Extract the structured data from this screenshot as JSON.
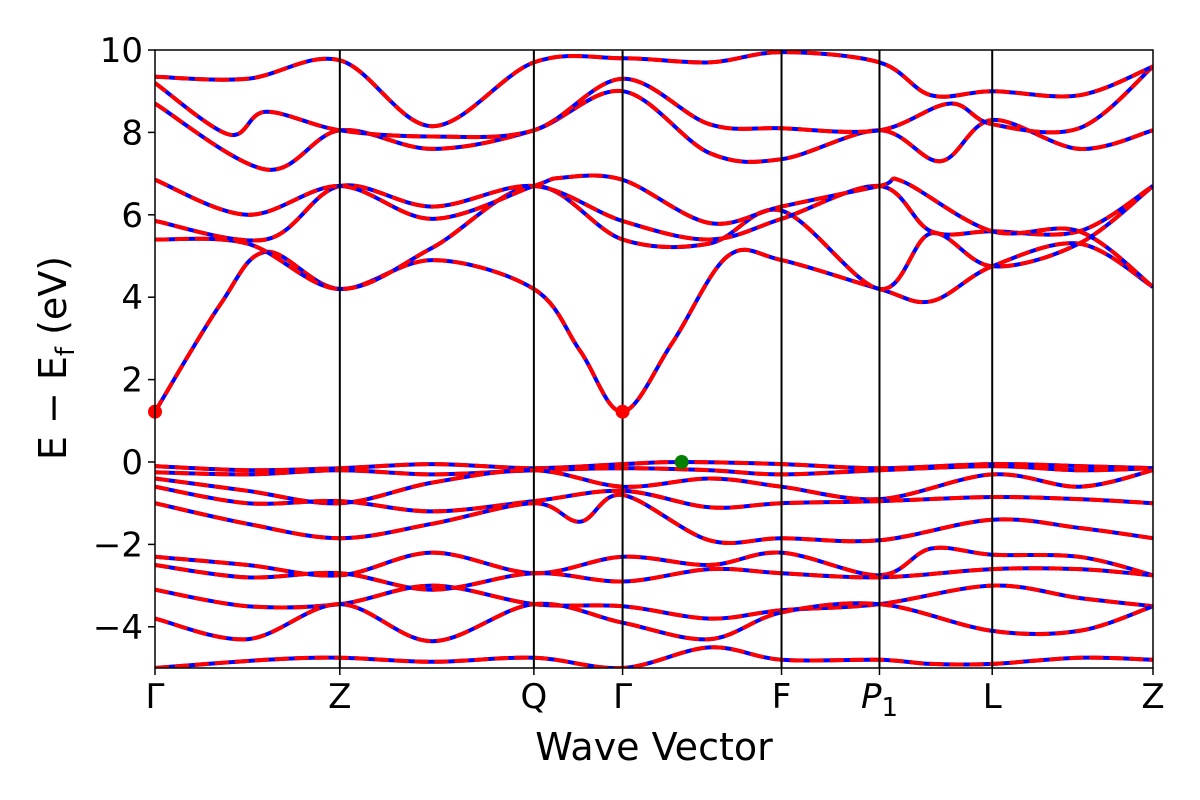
{
  "chart_data": {
    "type": "line",
    "xlabel": "Wave Vector",
    "ylabel": "E  −  E",
    "ylabel_sub": "f",
    "ylabel_unit": " (eV)",
    "ylim": [
      -5,
      10
    ],
    "yticks": [
      -4,
      -2,
      0,
      2,
      4,
      6,
      8,
      10
    ],
    "ytick_labels": [
      "−4",
      "−2",
      "0",
      "2",
      "4",
      "6",
      "8",
      "10"
    ],
    "kpath": [
      {
        "label": "Γ",
        "x": 0.0
      },
      {
        "label": "Z",
        "x": 1.0
      },
      {
        "label": "Q",
        "x": 2.05
      },
      {
        "label": "Γ",
        "x": 2.53
      },
      {
        "label": "F",
        "x": 3.39
      },
      {
        "label": "P",
        "sub": "1",
        "x": 3.92
      },
      {
        "label": "L",
        "x": 4.53
      },
      {
        "label": "Z",
        "x": 5.4
      }
    ],
    "series_colors": {
      "blue": "#0000ff",
      "red": "#ff0000",
      "vbm": "#008000",
      "cbm": "#ff0000"
    },
    "markers": [
      {
        "type": "cbm",
        "x": 0.0,
        "y": 1.22
      },
      {
        "type": "cbm",
        "x": 2.53,
        "y": 1.22
      },
      {
        "type": "vbm",
        "x": 2.85,
        "y": 0.0
      }
    ],
    "bands": [
      [
        [
          0,
          1.22
        ],
        [
          0.35,
          3.8
        ],
        [
          0.6,
          5.1
        ],
        [
          1.0,
          4.2
        ],
        [
          1.5,
          4.9
        ],
        [
          2.05,
          4.2
        ],
        [
          2.3,
          2.7
        ],
        [
          2.53,
          1.22
        ],
        [
          2.8,
          2.9
        ],
        [
          3.1,
          5.0
        ],
        [
          3.39,
          4.9
        ],
        [
          3.92,
          4.2
        ],
        [
          4.2,
          3.9
        ],
        [
          4.53,
          4.75
        ],
        [
          5.0,
          5.3
        ],
        [
          5.4,
          4.25
        ]
      ],
      [
        [
          0,
          5.4
        ],
        [
          0.5,
          5.3
        ],
        [
          1.0,
          4.2
        ],
        [
          1.5,
          5.2
        ],
        [
          2.05,
          6.7
        ],
        [
          2.53,
          5.4
        ],
        [
          3.0,
          5.3
        ],
        [
          3.39,
          6.1
        ],
        [
          3.92,
          4.2
        ],
        [
          4.2,
          5.55
        ],
        [
          4.53,
          4.75
        ],
        [
          5.0,
          5.3
        ],
        [
          5.4,
          6.7
        ]
      ],
      [
        [
          0,
          5.85
        ],
        [
          0.6,
          5.4
        ],
        [
          1.0,
          6.7
        ],
        [
          1.5,
          6.2
        ],
        [
          2.05,
          6.7
        ],
        [
          2.53,
          5.85
        ],
        [
          3.0,
          5.4
        ],
        [
          3.39,
          5.9
        ],
        [
          3.92,
          6.7
        ],
        [
          4.2,
          5.6
        ],
        [
          4.53,
          5.6
        ],
        [
          5.0,
          5.6
        ],
        [
          5.4,
          6.7
        ]
      ],
      [
        [
          0,
          6.85
        ],
        [
          0.5,
          6.0
        ],
        [
          1.0,
          6.7
        ],
        [
          1.5,
          5.9
        ],
        [
          2.05,
          6.7
        ],
        [
          2.2,
          6.9
        ],
        [
          2.53,
          6.85
        ],
        [
          3.0,
          5.8
        ],
        [
          3.39,
          6.2
        ],
        [
          3.92,
          6.7
        ],
        [
          4.05,
          6.8
        ],
        [
          4.53,
          5.6
        ],
        [
          5.0,
          5.6
        ],
        [
          5.4,
          4.25
        ]
      ],
      [
        [
          0,
          8.7
        ],
        [
          0.6,
          7.1
        ],
        [
          1.0,
          8.05
        ],
        [
          1.5,
          7.6
        ],
        [
          2.05,
          8.05
        ],
        [
          2.53,
          9.0
        ],
        [
          3.0,
          7.5
        ],
        [
          3.39,
          7.35
        ],
        [
          3.92,
          8.05
        ],
        [
          4.25,
          7.3
        ],
        [
          4.53,
          8.3
        ],
        [
          5.0,
          7.6
        ],
        [
          5.4,
          8.05
        ]
      ],
      [
        [
          0,
          9.2
        ],
        [
          0.4,
          7.95
        ],
        [
          0.6,
          8.5
        ],
        [
          1.0,
          8.05
        ],
        [
          1.5,
          7.9
        ],
        [
          2.05,
          8.05
        ],
        [
          2.53,
          9.3
        ],
        [
          3.0,
          8.2
        ],
        [
          3.39,
          8.1
        ],
        [
          3.92,
          8.05
        ],
        [
          4.3,
          8.7
        ],
        [
          4.53,
          8.2
        ],
        [
          5.0,
          8.1
        ],
        [
          5.4,
          9.6
        ]
      ],
      [
        [
          0,
          9.35
        ],
        [
          0.5,
          9.3
        ],
        [
          1.0,
          9.75
        ],
        [
          1.5,
          8.15
        ],
        [
          2.05,
          9.7
        ],
        [
          2.53,
          9.8
        ],
        [
          3.0,
          9.7
        ],
        [
          3.39,
          9.95
        ],
        [
          3.92,
          9.7
        ],
        [
          4.2,
          8.9
        ],
        [
          4.53,
          9.0
        ],
        [
          5.0,
          8.9
        ],
        [
          5.4,
          9.6
        ]
      ],
      [
        [
          0,
          -0.1
        ],
        [
          0.5,
          -0.2
        ],
        [
          1.0,
          -0.15
        ],
        [
          1.5,
          -0.05
        ],
        [
          2.05,
          -0.15
        ],
        [
          2.53,
          -0.05
        ],
        [
          2.85,
          0.0
        ],
        [
          3.39,
          -0.05
        ],
        [
          3.92,
          -0.15
        ],
        [
          4.53,
          -0.05
        ],
        [
          5.0,
          -0.1
        ],
        [
          5.4,
          -0.15
        ]
      ],
      [
        [
          0,
          -0.25
        ],
        [
          0.5,
          -0.3
        ],
        [
          1.0,
          -0.2
        ],
        [
          1.5,
          -0.3
        ],
        [
          2.05,
          -0.2
        ],
        [
          2.53,
          -0.15
        ],
        [
          3.0,
          -0.2
        ],
        [
          3.39,
          -0.3
        ],
        [
          3.92,
          -0.2
        ],
        [
          4.53,
          -0.1
        ],
        [
          5.0,
          -0.2
        ],
        [
          5.4,
          -0.15
        ]
      ],
      [
        [
          0,
          -0.4
        ],
        [
          0.5,
          -0.7
        ],
        [
          1.0,
          -1.0
        ],
        [
          1.5,
          -0.5
        ],
        [
          2.05,
          -0.2
        ],
        [
          2.53,
          -0.6
        ],
        [
          3.0,
          -0.4
        ],
        [
          3.39,
          -0.6
        ],
        [
          3.92,
          -0.9
        ],
        [
          4.53,
          -0.3
        ],
        [
          5.0,
          -0.6
        ],
        [
          5.4,
          -0.2
        ]
      ],
      [
        [
          0,
          -0.6
        ],
        [
          0.5,
          -1.0
        ],
        [
          1.0,
          -0.95
        ],
        [
          1.5,
          -1.2
        ],
        [
          2.05,
          -0.95
        ],
        [
          2.53,
          -0.7
        ],
        [
          3.0,
          -1.1
        ],
        [
          3.39,
          -1.0
        ],
        [
          3.92,
          -0.95
        ],
        [
          4.53,
          -0.85
        ],
        [
          5.0,
          -0.9
        ],
        [
          5.4,
          -1.0
        ]
      ],
      [
        [
          0,
          -1.0
        ],
        [
          0.5,
          -1.5
        ],
        [
          1.0,
          -1.85
        ],
        [
          1.5,
          -1.5
        ],
        [
          2.05,
          -1.0
        ],
        [
          2.3,
          -1.45
        ],
        [
          2.53,
          -0.8
        ],
        [
          3.0,
          -1.9
        ],
        [
          3.39,
          -1.85
        ],
        [
          3.92,
          -1.9
        ],
        [
          4.53,
          -1.4
        ],
        [
          5.0,
          -1.6
        ],
        [
          5.4,
          -1.85
        ]
      ],
      [
        [
          0,
          -2.3
        ],
        [
          0.5,
          -2.5
        ],
        [
          1.0,
          -2.75
        ],
        [
          1.5,
          -2.2
        ],
        [
          2.05,
          -2.7
        ],
        [
          2.53,
          -2.3
        ],
        [
          3.0,
          -2.5
        ],
        [
          3.39,
          -2.2
        ],
        [
          3.92,
          -2.75
        ],
        [
          4.2,
          -2.1
        ],
        [
          4.53,
          -2.25
        ],
        [
          5.0,
          -2.3
        ],
        [
          5.4,
          -2.75
        ]
      ],
      [
        [
          0,
          -2.5
        ],
        [
          0.5,
          -2.8
        ],
        [
          1.0,
          -2.7
        ],
        [
          1.5,
          -3.1
        ],
        [
          2.05,
          -2.7
        ],
        [
          2.53,
          -2.9
        ],
        [
          3.0,
          -2.6
        ],
        [
          3.39,
          -2.7
        ],
        [
          3.92,
          -2.8
        ],
        [
          4.53,
          -2.6
        ],
        [
          5.0,
          -2.6
        ],
        [
          5.4,
          -2.75
        ]
      ],
      [
        [
          0,
          -3.1
        ],
        [
          0.5,
          -3.5
        ],
        [
          1.0,
          -3.45
        ],
        [
          1.5,
          -3.0
        ],
        [
          2.05,
          -3.45
        ],
        [
          2.53,
          -3.5
        ],
        [
          3.0,
          -3.8
        ],
        [
          3.39,
          -3.6
        ],
        [
          3.92,
          -3.45
        ],
        [
          4.53,
          -3.0
        ],
        [
          5.0,
          -3.3
        ],
        [
          5.4,
          -3.5
        ]
      ],
      [
        [
          0,
          -3.8
        ],
        [
          0.5,
          -4.3
        ],
        [
          1.0,
          -3.45
        ],
        [
          1.5,
          -4.35
        ],
        [
          2.05,
          -3.45
        ],
        [
          2.53,
          -3.9
        ],
        [
          3.0,
          -4.3
        ],
        [
          3.39,
          -3.65
        ],
        [
          3.92,
          -3.45
        ],
        [
          4.53,
          -4.1
        ],
        [
          5.0,
          -4.1
        ],
        [
          5.4,
          -3.5
        ]
      ],
      [
        [
          0,
          -5.0
        ],
        [
          0.6,
          -4.8
        ],
        [
          1.0,
          -4.75
        ],
        [
          1.5,
          -4.85
        ],
        [
          2.05,
          -4.75
        ],
        [
          2.53,
          -5.0
        ],
        [
          3.0,
          -4.5
        ],
        [
          3.39,
          -4.8
        ],
        [
          3.92,
          -4.8
        ],
        [
          4.2,
          -4.9
        ],
        [
          4.53,
          -4.9
        ],
        [
          5.0,
          -4.75
        ],
        [
          5.4,
          -4.8
        ]
      ]
    ]
  }
}
